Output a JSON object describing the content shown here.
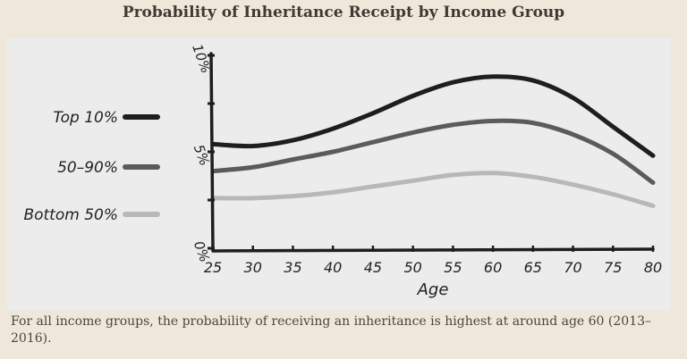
{
  "title": "Probability of Inheritance Receipt by Income Group",
  "caption": "For all income groups, the probability of receiving an inheritance is highest at around age 60 (2013–2016).",
  "colors": {
    "top10": "#1e1e1e",
    "mid": "#5b5b5b",
    "bottom": "#b8b8b8",
    "axis": "#1e1e1e"
  },
  "chart_data": {
    "type": "line",
    "title": "Probability of Inheritance Receipt by Income Group",
    "xlabel": "Age",
    "ylabel": "",
    "x": [
      25,
      30,
      35,
      40,
      45,
      50,
      55,
      60,
      65,
      70,
      75,
      80
    ],
    "xlim": [
      25,
      80
    ],
    "ylim": [
      0,
      10
    ],
    "x_ticks": [
      "25",
      "30",
      "35",
      "40",
      "45",
      "50",
      "55",
      "60",
      "65",
      "70",
      "75",
      "80"
    ],
    "y_ticks": [
      {
        "value": 0,
        "label": "0%"
      },
      {
        "value": 5,
        "label": "5%"
      },
      {
        "value": 10,
        "label": "10%"
      }
    ],
    "legend_position": "left",
    "series": [
      {
        "name": "Top 10%",
        "color_key": "top10",
        "values": [
          5.4,
          5.3,
          5.6,
          6.2,
          7.0,
          7.9,
          8.6,
          8.9,
          8.7,
          7.8,
          6.3,
          4.8
        ]
      },
      {
        "name": "50–90%",
        "color_key": "mid",
        "values": [
          4.0,
          4.2,
          4.6,
          5.0,
          5.5,
          6.0,
          6.4,
          6.6,
          6.5,
          5.9,
          4.9,
          3.4
        ]
      },
      {
        "name": "Bottom 50%",
        "color_key": "bottom",
        "values": [
          2.6,
          2.6,
          2.7,
          2.9,
          3.2,
          3.5,
          3.8,
          3.9,
          3.7,
          3.3,
          2.8,
          2.2
        ]
      }
    ]
  }
}
